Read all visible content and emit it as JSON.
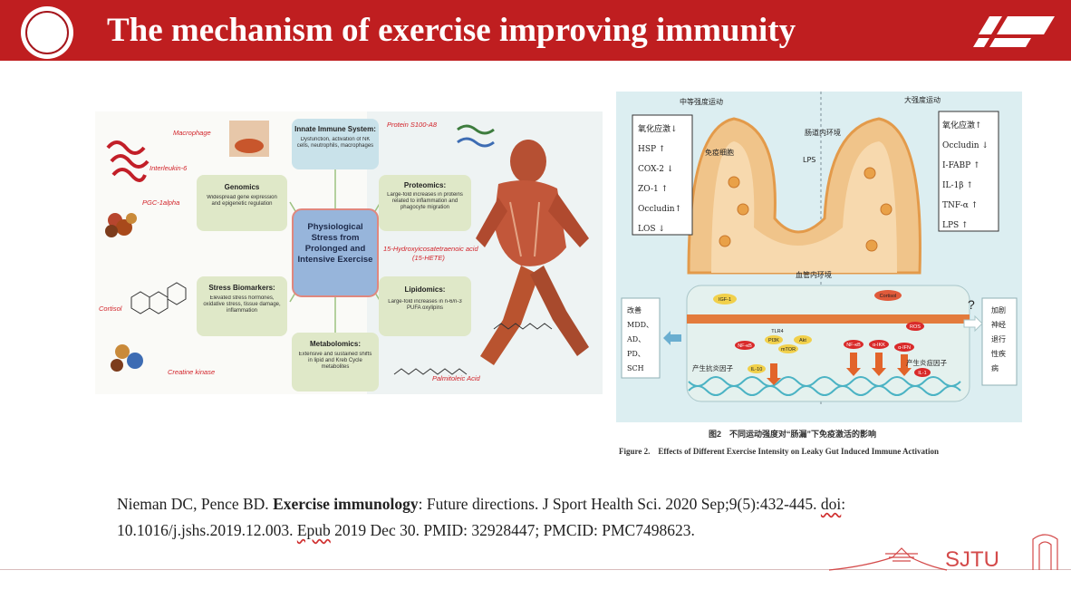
{
  "slide": {
    "title": "The mechanism of exercise improving immunity",
    "logo_text": "SJTU"
  },
  "left_figure": {
    "center": "Physiological Stress from Prolonged and Intensive Exercise",
    "innate": {
      "title": "Innate Immune System:",
      "body": "Dysfunction, activation of NK cells, neutrophils, macrophages"
    },
    "genomics": {
      "title": "Genomics",
      "body": "Widespread gene expression and epigenetic regulation"
    },
    "proteomics": {
      "title": "Proteomics:",
      "body": "Large-fold increases in proteins related to inflammation and phagocyte migration"
    },
    "stress": {
      "title": "Stress Biomarkers:",
      "body": "Elevated stress hormones, oxidative stress, tissue damage, inflammation"
    },
    "lipidomics": {
      "title": "Lipidomics:",
      "body": "Large-fold increases in n-6/n-3 PUFA oxylipins"
    },
    "metabolomics": {
      "title": "Metabolomics:",
      "body": "Extensive and sustained shifts in lipid and Kreb Cycle metabolites"
    },
    "labels": {
      "macrophage": "Macrophage",
      "interleukin": "Interleukin-6",
      "pgc": "PGC-1alpha",
      "cortisol": "Cortisol",
      "creatine": "Creatine kinase",
      "protein": "Protein S100-A8",
      "hete": "15-Hydroxyicosatetraenoic acid",
      "hete_abbr": "(15-HETE)",
      "palmitoleic": "Palmitoleic Acid"
    }
  },
  "right_figure": {
    "moderate": "中等强度运动",
    "intense": "大强度运动",
    "immune_cells": "免疫细胞",
    "gut_env": "肠道内环境",
    "lps": "LPS",
    "blood_env": "血管内环境",
    "left_list": [
      "氧化应激↓",
      "HSP ↑",
      "COX-2 ↓",
      "ZO-1 ↑",
      "Occludin↑",
      "LOS ↓"
    ],
    "right_list": [
      "氧化应激↑",
      "Occludin ↓",
      "I-FABP ↑",
      "IL-1β ↑",
      "TNF-α ↑",
      "LPS ↑"
    ],
    "improve": "改善 MDD、AD、PD、SCH",
    "improve_lines": [
      "改善",
      "MDD、",
      "AD、",
      "PD、",
      "SCH"
    ],
    "aggravate": [
      "加剧",
      "神经",
      "退行",
      "性疾",
      "病"
    ],
    "anti": "产生抗炎因子",
    "pro": "产生炎症因子",
    "molecules": {
      "igf": "IGF-1",
      "cortisol": "Cortisol",
      "tlr4": "TLR4",
      "pi3k": "PI3K",
      "akt": "Akt",
      "mtor": "mTOR",
      "nfkb": "NF-κB",
      "il10": "IL-10",
      "ros": "ROS",
      "il1": "IL-1",
      "nfkb2": "NF-κB",
      "ikkb": "α-IKK",
      "hif": "α-IFN"
    },
    "qmark": "?"
  },
  "captions": {
    "cn": "图2　不同运动强度对“肠漏”下免疫激活的影响",
    "en": "Figure 2.　Effects of Different Exercise Intensity on Leaky Gut Induced Immune Activation"
  },
  "citation": {
    "authors": "Nieman DC, Pence BD. ",
    "bold": "Exercise immunology",
    "rest1": ": Future directions. J Sport Health Sci. 2020 Sep;9(5):432-445. ",
    "doi": "doi",
    "rest2": ": 10.1016/j.jshs.2019.12.003. ",
    "epub": "Epub",
    "rest3": " 2019 Dec 30. PMID: 32928447; PMCID: PMC7498623."
  },
  "footer": {
    "brand": "SJTU"
  },
  "colors": {
    "accent": "#bf1e20",
    "green_box": "#dfe8c8",
    "blue_box": "#c9e2ea"
  }
}
